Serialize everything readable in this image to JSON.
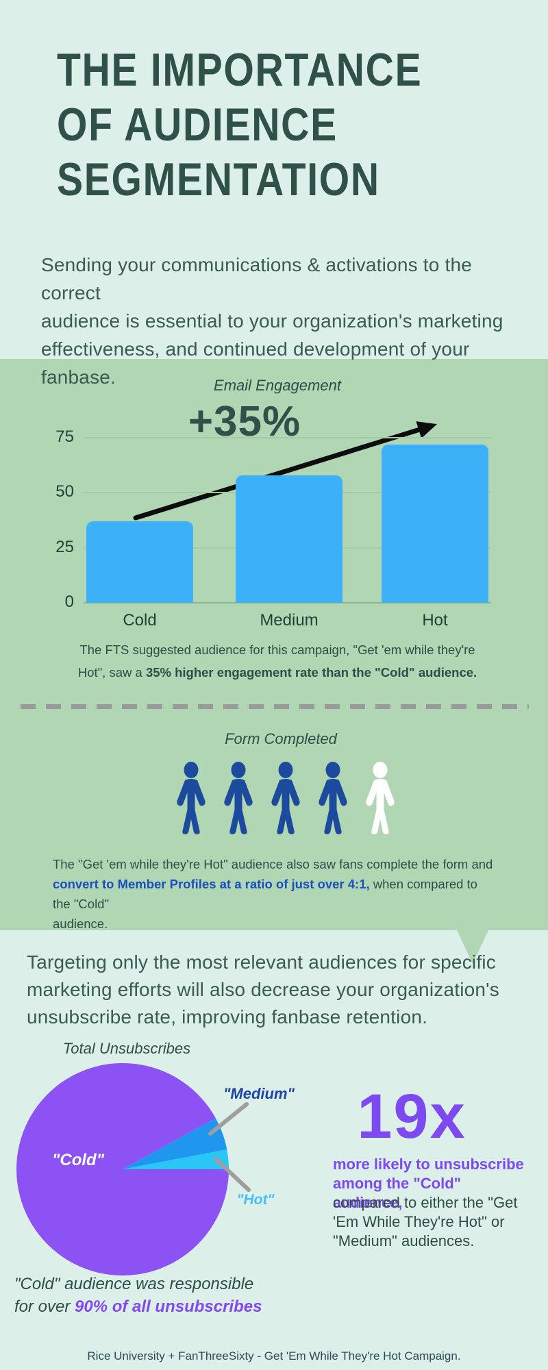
{
  "header": {
    "title": "THE IMPORTANCE\nOF AUDIENCE\nSEGMENTATION",
    "intro": "Sending your communications & activations to the correct\naudience is essential to your organization's marketing\neffectiveness, and continued development of your fanbase."
  },
  "email_section": {
    "caption_pre": "The FTS suggested audience for this campaign, \"Get 'em while they're\nHot\", saw a ",
    "caption_bold": "35% higher engagement rate than the \"Cold\" audience."
  },
  "form_section": {
    "title": "Form Completed",
    "people_filled": 4,
    "people_total": 5,
    "people_filled_color": "#1c4b9d",
    "people_empty_color": "#ffffff",
    "caption_pre": "The \"Get 'em while they're Hot\" audience also saw fans complete the form and\n",
    "caption_bold": "convert to Member Profiles at a ratio of just over 4:1,",
    "caption_post": " when compared to the \"Cold\"\naudience."
  },
  "retention_section": {
    "intro": "Targeting only the most relevant audiences for specific\nmarketing efforts will also decrease your organization's\nunsubscribe rate, improving fanbase retention.",
    "stat_value": "19x",
    "stat_bold": "more likely to unsubscribe\namong the \"Cold\" audience,",
    "stat_rest": "compared to either the \"Get\n'Em While They're Hot\" or\n\"Medium\" audiences.",
    "note_pre": "\"Cold\" audience was responsible\nfor over ",
    "note_bold": "90% of all unsubscribes"
  },
  "footer": {
    "credit": "Rice University + FanThreeSixty - Get 'Em While They're Hot Campaign."
  },
  "colors": {
    "background": "#dcefe8",
    "band_green": "#b1d6b3",
    "headline_text": "#30504a",
    "bar_blue": "#3cb1f8",
    "people_blue": "#1c4b9d",
    "caption_blue": "#1b4fc0",
    "purple": "#7d49f1",
    "dash_gray": "#9a9a9a"
  },
  "chart_data": [
    {
      "type": "bar",
      "title": "Email Engagement",
      "categories": [
        "Cold",
        "Medium",
        "Hot"
      ],
      "values": [
        37,
        58,
        72
      ],
      "yticks": [
        75,
        50,
        25,
        0
      ],
      "ylim": [
        0,
        75
      ],
      "xlabel": "",
      "ylabel": "",
      "grid": true,
      "bar_color": "#3cb1f8",
      "annotation": "+35%",
      "annotation_note": "black arrow rising from top of Cold bar to above Hot bar"
    },
    {
      "type": "pie",
      "title": "Total Unsubscribes",
      "slices": [
        {
          "label": "\"Hot\"",
          "pct": 3,
          "color": "#29c6f7",
          "label_color": "#45c0f5"
        },
        {
          "label": "\"Medium\"",
          "pct": 5,
          "color": "#1f97ef",
          "label_color": "#1d44a6"
        },
        {
          "label": "\"Cold\"",
          "pct": 92,
          "color": "#8c52f3",
          "label_color": "#ffffff"
        }
      ],
      "start_angle_deg": 0,
      "legend_position": "callout-labels"
    }
  ]
}
